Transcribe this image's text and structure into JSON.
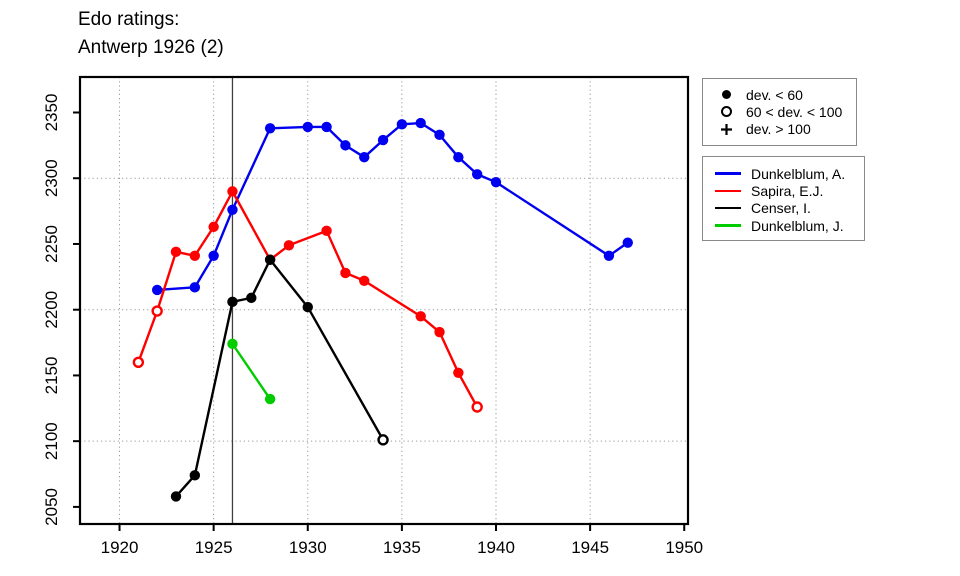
{
  "title": {
    "line1": "Edo ratings:",
    "line2": "Antwerp 1926 (2)"
  },
  "marker_legend": {
    "items": [
      {
        "symbol": "filled-circle",
        "label": "dev. < 60"
      },
      {
        "symbol": "open-circle",
        "label": "60 < dev. < 100"
      },
      {
        "symbol": "plus",
        "label": "dev. > 100"
      }
    ]
  },
  "chart_data": {
    "type": "line",
    "title": "Edo ratings: Antwerp 1926 (2)",
    "xlabel": "",
    "ylabel": "",
    "xlim": [
      1917.9,
      1950.2
    ],
    "ylim": [
      2037,
      2377
    ],
    "x_ticks": [
      1920,
      1925,
      1930,
      1935,
      1940,
      1945,
      1950
    ],
    "y_ticks": [
      2050,
      2100,
      2150,
      2200,
      2250,
      2300,
      2350
    ],
    "grid": {
      "x_lines": [
        1920,
        1925,
        1930,
        1935,
        1940,
        1945
      ],
      "y_lines": [
        2100,
        2200,
        2300
      ]
    },
    "reference_line_x": 1926,
    "legend_position": "right",
    "marker_meaning": {
      "filled": "dev. < 60",
      "open": "60 < dev. < 100",
      "plus": "dev. > 100"
    },
    "series": [
      {
        "name": "Dunkelblum, A.",
        "color": "#0000f0",
        "points": [
          {
            "x": 1922,
            "y": 2215,
            "marker": "filled"
          },
          {
            "x": 1924,
            "y": 2217,
            "marker": "filled"
          },
          {
            "x": 1925,
            "y": 2241,
            "marker": "filled"
          },
          {
            "x": 1926,
            "y": 2276,
            "marker": "filled"
          },
          {
            "x": 1928,
            "y": 2338,
            "marker": "filled"
          },
          {
            "x": 1930,
            "y": 2339,
            "marker": "filled"
          },
          {
            "x": 1931,
            "y": 2339,
            "marker": "filled"
          },
          {
            "x": 1932,
            "y": 2325,
            "marker": "filled"
          },
          {
            "x": 1933,
            "y": 2316,
            "marker": "filled"
          },
          {
            "x": 1934,
            "y": 2329,
            "marker": "filled"
          },
          {
            "x": 1935,
            "y": 2341,
            "marker": "filled"
          },
          {
            "x": 1936,
            "y": 2342,
            "marker": "filled"
          },
          {
            "x": 1937,
            "y": 2333,
            "marker": "filled"
          },
          {
            "x": 1938,
            "y": 2316,
            "marker": "filled"
          },
          {
            "x": 1939,
            "y": 2303,
            "marker": "filled"
          },
          {
            "x": 1940,
            "y": 2297,
            "marker": "filled"
          },
          {
            "x": 1946,
            "y": 2241,
            "marker": "filled"
          },
          {
            "x": 1947,
            "y": 2251,
            "marker": "filled"
          }
        ]
      },
      {
        "name": "Sapira, E.J.",
        "color": "#ff0000",
        "points": [
          {
            "x": 1921,
            "y": 2160,
            "marker": "open"
          },
          {
            "x": 1922,
            "y": 2199,
            "marker": "open"
          },
          {
            "x": 1923,
            "y": 2244,
            "marker": "filled"
          },
          {
            "x": 1924,
            "y": 2241,
            "marker": "filled"
          },
          {
            "x": 1925,
            "y": 2263,
            "marker": "filled"
          },
          {
            "x": 1926,
            "y": 2290,
            "marker": "filled"
          },
          {
            "x": 1928,
            "y": 2238,
            "marker": "filled"
          },
          {
            "x": 1929,
            "y": 2249,
            "marker": "filled"
          },
          {
            "x": 1931,
            "y": 2260,
            "marker": "filled"
          },
          {
            "x": 1932,
            "y": 2228,
            "marker": "filled"
          },
          {
            "x": 1933,
            "y": 2222,
            "marker": "filled"
          },
          {
            "x": 1936,
            "y": 2195,
            "marker": "filled"
          },
          {
            "x": 1937,
            "y": 2183,
            "marker": "filled"
          },
          {
            "x": 1938,
            "y": 2152,
            "marker": "filled"
          },
          {
            "x": 1939,
            "y": 2126,
            "marker": "open"
          }
        ]
      },
      {
        "name": "Censer, I.",
        "color": "#000000",
        "points": [
          {
            "x": 1923,
            "y": 2058,
            "marker": "filled"
          },
          {
            "x": 1924,
            "y": 2074,
            "marker": "filled"
          },
          {
            "x": 1926,
            "y": 2206,
            "marker": "filled"
          },
          {
            "x": 1927,
            "y": 2209,
            "marker": "filled"
          },
          {
            "x": 1928,
            "y": 2238,
            "marker": "filled"
          },
          {
            "x": 1930,
            "y": 2202,
            "marker": "filled"
          },
          {
            "x": 1934,
            "y": 2101,
            "marker": "open"
          }
        ]
      },
      {
        "name": "Dunkelblum, J.",
        "color": "#00cc00",
        "points": [
          {
            "x": 1926,
            "y": 2174,
            "marker": "filled"
          },
          {
            "x": 1928,
            "y": 2132,
            "marker": "filled"
          }
        ]
      }
    ]
  }
}
